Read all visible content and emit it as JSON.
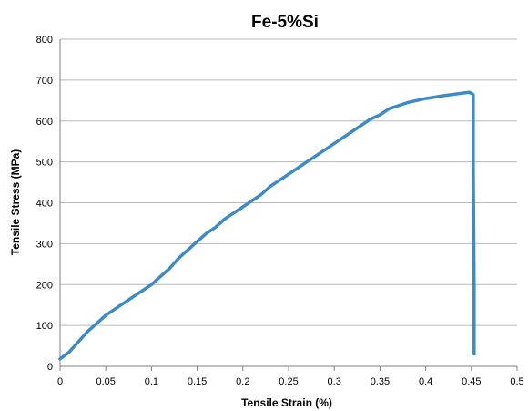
{
  "chart_data": {
    "type": "line",
    "title": "Fe-5%Si",
    "xlabel": "Tensile Strain (%)",
    "ylabel": "Tensile Stress (MPa)",
    "xlim": [
      0,
      0.5
    ],
    "ylim": [
      0,
      800
    ],
    "x_ticks": [
      "0",
      "0.05",
      "0.1",
      "0.15",
      "0.2",
      "0.25",
      "0.3",
      "0.35",
      "0.4",
      "0.45",
      "0.5"
    ],
    "y_ticks": [
      "0",
      "100",
      "200",
      "300",
      "400",
      "500",
      "600",
      "700",
      "800"
    ],
    "grid": "horizontal",
    "legend": "none",
    "series": [
      {
        "color": "#3d8ac9",
        "x": [
          0,
          0.01,
          0.02,
          0.03,
          0.04,
          0.05,
          0.06,
          0.07,
          0.08,
          0.09,
          0.1,
          0.11,
          0.12,
          0.13,
          0.14,
          0.15,
          0.16,
          0.17,
          0.18,
          0.19,
          0.2,
          0.21,
          0.22,
          0.23,
          0.24,
          0.25,
          0.26,
          0.27,
          0.28,
          0.29,
          0.3,
          0.31,
          0.32,
          0.33,
          0.34,
          0.35,
          0.36,
          0.38,
          0.4,
          0.42,
          0.44,
          0.448,
          0.452,
          0.452,
          0.453,
          0.453
        ],
        "y": [
          18,
          35,
          60,
          85,
          105,
          125,
          140,
          155,
          170,
          185,
          200,
          220,
          240,
          265,
          285,
          305,
          325,
          340,
          360,
          375,
          390,
          405,
          420,
          440,
          455,
          470,
          485,
          500,
          515,
          530,
          545,
          560,
          575,
          590,
          605,
          615,
          630,
          645,
          655,
          662,
          668,
          670,
          665,
          500,
          200,
          30
        ]
      }
    ]
  }
}
